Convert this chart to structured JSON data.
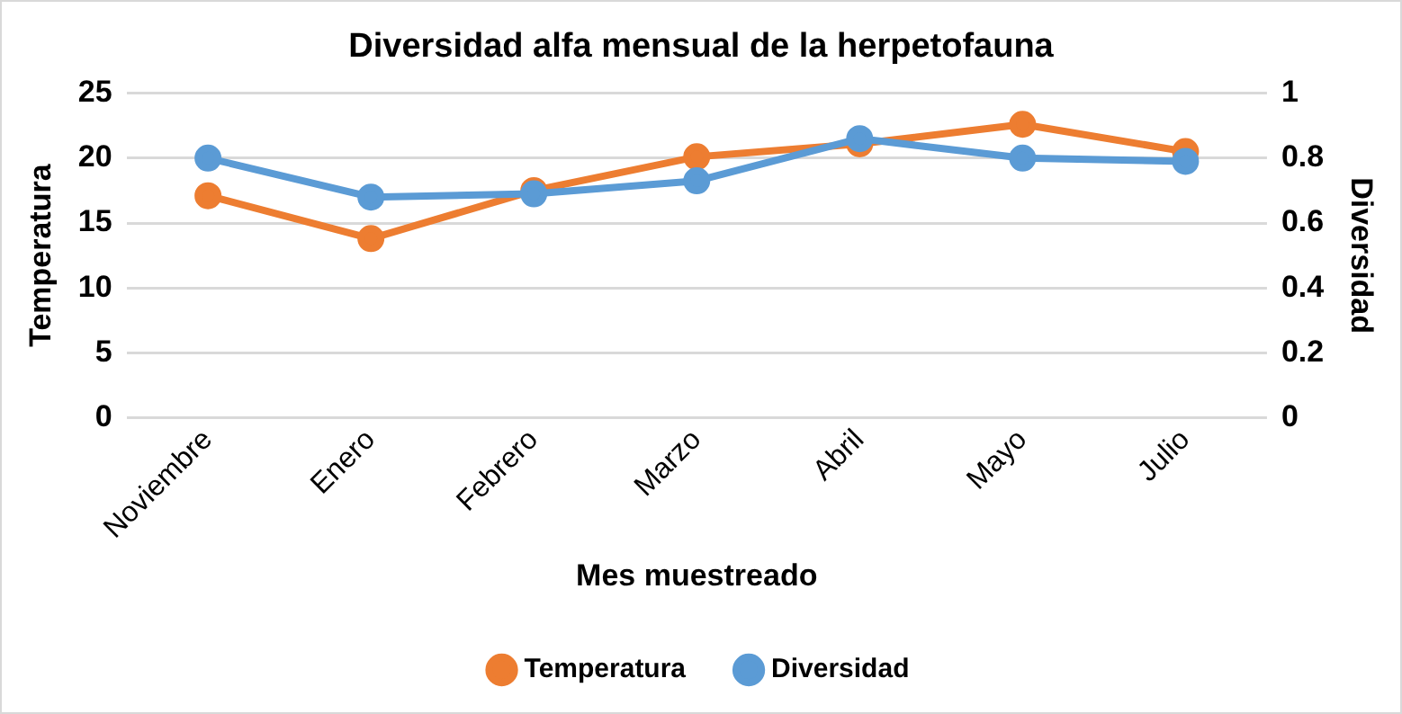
{
  "chart_data": {
    "type": "line",
    "title": "Diversidad alfa mensual de la herpetofauna",
    "xlabel": "Mes muestreado",
    "ylabel": "Temperatura",
    "y2label": "Diversidad",
    "categories": [
      "Noviembre",
      "Enero",
      "Febrero",
      "Marzo",
      "Abril",
      "Mayo",
      "Julio"
    ],
    "series": [
      {
        "name": "Temperatura",
        "color": "#ed7d31",
        "values": [
          17.1,
          13.8,
          17.5,
          20.1,
          21.1,
          22.6,
          20.5
        ]
      },
      {
        "name": "Diversidad",
        "color": "#5b9bd5",
        "axis": "y2",
        "values": [
          0.8,
          0.68,
          0.69,
          0.73,
          0.86,
          0.8,
          0.79
        ]
      }
    ],
    "ylim": [
      0,
      25
    ],
    "yticks": [
      0,
      5,
      10,
      15,
      20,
      25
    ],
    "y2lim": [
      0,
      1
    ],
    "y2ticks": [
      0,
      {
        "value": 0.2,
        "label": "0.2"
      },
      {
        "value": 0.4,
        "label": "0.4"
      },
      {
        "value": 0.6,
        "label": "0.6"
      },
      {
        "value": 0.8,
        "label": "0.8"
      },
      1
    ],
    "grid": "y",
    "legend": "bottom",
    "marker": "circle",
    "line_style": "solid"
  }
}
